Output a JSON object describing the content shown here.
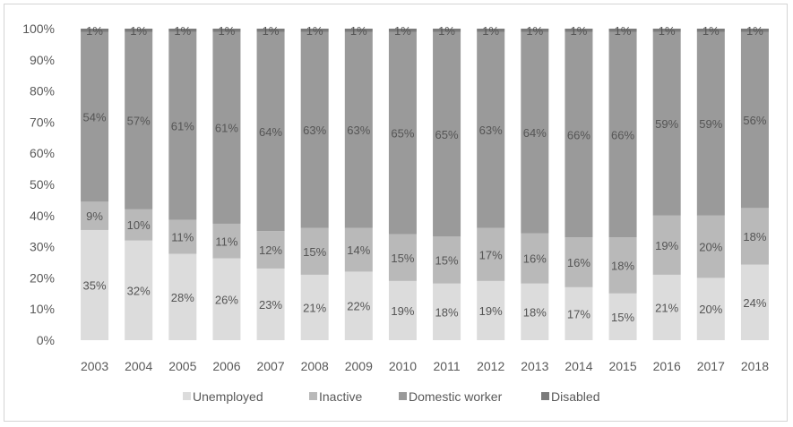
{
  "chart_data": {
    "type": "bar",
    "stacked": true,
    "normalized_percent": true,
    "title": "",
    "xlabel": "",
    "ylabel": "",
    "ylim": [
      0,
      100
    ],
    "y_ticks": [
      "0%",
      "10%",
      "20%",
      "30%",
      "40%",
      "50%",
      "60%",
      "70%",
      "80%",
      "90%",
      "100%"
    ],
    "categories": [
      "2003",
      "2004",
      "2005",
      "2006",
      "2007",
      "2008",
      "2009",
      "2010",
      "2011",
      "2012",
      "2013",
      "2014",
      "2015",
      "2016",
      "2017",
      "2018"
    ],
    "series": [
      {
        "name": "Unemployed",
        "color": "#dcdcdc",
        "values": [
          35,
          32,
          28,
          26,
          23,
          21,
          22,
          19,
          18,
          19,
          18,
          17,
          15,
          21,
          20,
          24
        ]
      },
      {
        "name": "Inactive",
        "color": "#b9b9b9",
        "values": [
          9,
          10,
          11,
          11,
          12,
          15,
          14,
          15,
          15,
          17,
          16,
          16,
          18,
          19,
          20,
          18
        ]
      },
      {
        "name": "Domestic worker",
        "color": "#9a9a9a",
        "values": [
          54,
          57,
          61,
          61,
          64,
          63,
          63,
          65,
          65,
          63,
          64,
          66,
          66,
          59,
          59,
          56
        ]
      },
      {
        "name": "Disabled",
        "color": "#7b7b7b",
        "values": [
          1,
          1,
          1,
          1,
          1,
          1,
          1,
          1,
          1,
          1,
          1,
          1,
          1,
          1,
          1,
          1
        ]
      }
    ],
    "data_labels": [
      [
        "35%",
        "32%",
        "28%",
        "26%",
        "23%",
        "21%",
        "22%",
        "19%",
        "18%",
        "19%",
        "18%",
        "17%",
        "15%",
        "21%",
        "20%",
        "24%"
      ],
      [
        "9%",
        "10%",
        "11%",
        "11%",
        "12%",
        "15%",
        "14%",
        "15%",
        "15%",
        "17%",
        "16%",
        "16%",
        "18%",
        "19%",
        "20%",
        "18%"
      ],
      [
        "54%",
        "57%",
        "61%",
        "61%",
        "64%",
        "63%",
        "63%",
        "65%",
        "65%",
        "63%",
        "64%",
        "66%",
        "66%",
        "59%",
        "59%",
        "56%"
      ],
      [
        "1%",
        "1%",
        "1%",
        "1%",
        "1%",
        "1%",
        "1%",
        "1%",
        "1%",
        "1%",
        "1%",
        "1%",
        "1%",
        "1%",
        "1%",
        "1%"
      ]
    ],
    "grid": false,
    "legend": "bottom"
  }
}
